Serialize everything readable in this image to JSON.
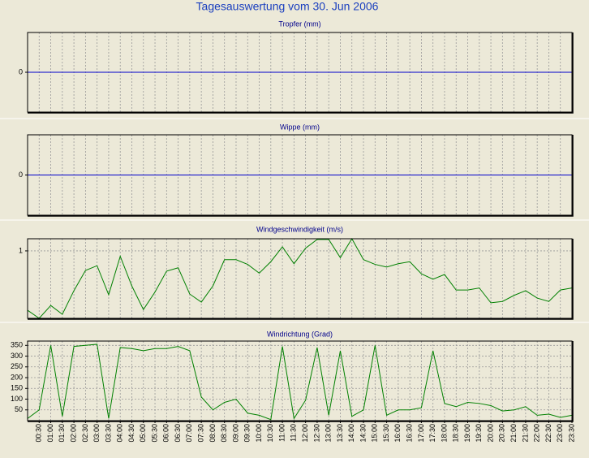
{
  "title": "Tagesauswertung vom 30. Jun 2006",
  "chart_data": [
    {
      "type": "line",
      "title": "Tropfer (mm)",
      "ylim": [
        -1,
        1
      ],
      "yticks": [
        0
      ],
      "zero_line": true,
      "zero_line_color": "#0000cc",
      "grid": true
    },
    {
      "type": "line",
      "title": "Wippe (mm)",
      "ylim": [
        -1,
        1
      ],
      "yticks": [
        0
      ],
      "zero_line": true,
      "zero_line_color": "#0000cc",
      "grid": true
    },
    {
      "type": "line",
      "title": "Windgeschwindigkeit (m/s)",
      "ylim": [
        0,
        1.18
      ],
      "yticks": [
        1
      ],
      "grid": true,
      "series": [
        {
          "color": "#008000",
          "values": [
            0.12,
            0,
            0.19,
            0.06,
            0.41,
            0.71,
            0.78,
            0.35,
            0.92,
            0.48,
            0.13,
            0.39,
            0.7,
            0.75,
            0.36,
            0.24,
            0.48,
            0.87,
            0.87,
            0.8,
            0.67,
            0.84,
            1.06,
            0.81,
            1.04,
            1.17,
            1.17,
            0.9,
            1.18,
            0.87,
            0.8,
            0.76,
            0.81,
            0.84,
            0.66,
            0.58,
            0.65,
            0.42,
            0.42,
            0.45,
            0.23,
            0.25,
            0.34,
            0.41,
            0.3,
            0.25,
            0.42,
            0.45
          ]
        }
      ]
    },
    {
      "type": "line",
      "title": "Windrichtung (Grad)",
      "ylim": [
        0,
        370
      ],
      "yticks": [
        50,
        100,
        150,
        200,
        250,
        300,
        350
      ],
      "grid": true,
      "categories": [
        null,
        "00:30",
        "01:00",
        "01:30",
        "02:00",
        "02:30",
        "03:00",
        "03:30",
        "04:00",
        "04:30",
        "05:00",
        "05:30",
        "06:00",
        "06:30",
        "07:00",
        "07:30",
        "08:00",
        "08:30",
        "09:00",
        "09:30",
        "10:00",
        "10:30",
        "11:00",
        "11:30",
        "12:00",
        "12:30",
        "13:00",
        "13:30",
        "14:00",
        "14:30",
        "15:00",
        "15:30",
        "16:00",
        "16:30",
        "17:00",
        "17:30",
        "18:00",
        "18:30",
        "19:00",
        "19:30",
        "20:00",
        "20:30",
        "21:00",
        "21:30",
        "22:00",
        "22:30",
        "23:00",
        "23:30"
      ],
      "series": [
        {
          "color": "#008000",
          "values": [
            10,
            50,
            350,
            20,
            345,
            350,
            355,
            10,
            340,
            335,
            325,
            335,
            335,
            345,
            325,
            110,
            50,
            85,
            100,
            35,
            25,
            5,
            345,
            10,
            95,
            340,
            25,
            325,
            20,
            50,
            350,
            25,
            50,
            50,
            60,
            325,
            80,
            65,
            85,
            80,
            70,
            45,
            50,
            65,
            25,
            30,
            15,
            25
          ]
        }
      ]
    }
  ]
}
